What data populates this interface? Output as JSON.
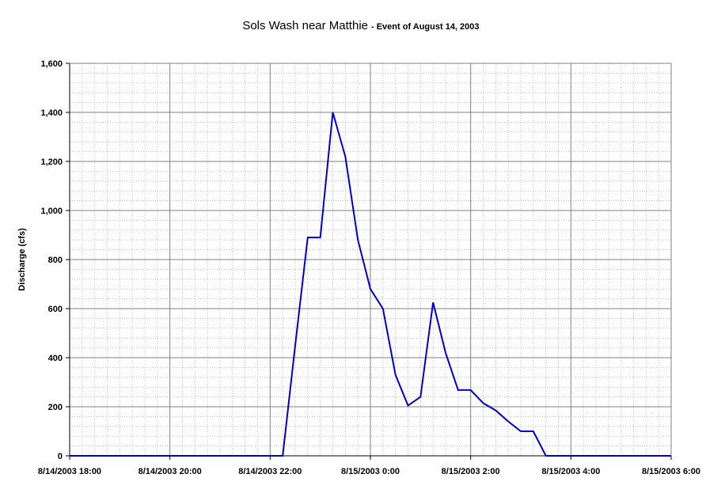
{
  "chart_data": {
    "type": "line",
    "title": "Sols Wash near Matthie",
    "subtitle": "- Event of August 14, 2003",
    "xlabel": "",
    "ylabel": "Discharge (cfs)",
    "x_ticks": [
      "8/14/2003 18:00",
      "8/14/2003 20:00",
      "8/14/2003 22:00",
      "8/15/2003 0:00",
      "8/15/2003 2:00",
      "8/15/2003 4:00",
      "8/15/2003 6:00"
    ],
    "y_ticks": [
      "0",
      "200",
      "400",
      "600",
      "800",
      "1,000",
      "1,200",
      "1,400",
      "1,600"
    ],
    "xlim": [
      "8/14/2003 18:00",
      "8/15/2003 6:00"
    ],
    "ylim": [
      0,
      1600
    ],
    "grid": true,
    "series": [
      {
        "color": "#0000cc",
        "points": [
          {
            "x": "8/14/2003 18:00",
            "y": 0
          },
          {
            "x": "8/14/2003 22:15",
            "y": 0
          },
          {
            "x": "8/14/2003 22:30",
            "y": 450
          },
          {
            "x": "8/14/2003 22:45",
            "y": 890
          },
          {
            "x": "8/14/2003 23:00",
            "y": 890
          },
          {
            "x": "8/14/2003 23:15",
            "y": 1400
          },
          {
            "x": "8/14/2003 23:30",
            "y": 1220
          },
          {
            "x": "8/14/2003 23:45",
            "y": 880
          },
          {
            "x": "8/15/2003 0:00",
            "y": 680
          },
          {
            "x": "8/15/2003 0:15",
            "y": 600
          },
          {
            "x": "8/15/2003 0:30",
            "y": 330
          },
          {
            "x": "8/15/2003 0:45",
            "y": 205
          },
          {
            "x": "8/15/2003 1:00",
            "y": 240
          },
          {
            "x": "8/15/2003 1:15",
            "y": 625
          },
          {
            "x": "8/15/2003 1:30",
            "y": 420
          },
          {
            "x": "8/15/2003 1:45",
            "y": 268
          },
          {
            "x": "8/15/2003 2:00",
            "y": 268
          },
          {
            "x": "8/15/2003 2:15",
            "y": 215
          },
          {
            "x": "8/15/2003 2:30",
            "y": 185
          },
          {
            "x": "8/15/2003 2:45",
            "y": 140
          },
          {
            "x": "8/15/2003 3:00",
            "y": 100
          },
          {
            "x": "8/15/2003 3:15",
            "y": 100
          },
          {
            "x": "8/15/2003 3:30",
            "y": 0
          },
          {
            "x": "8/15/2003 6:00",
            "y": 0
          }
        ]
      }
    ]
  }
}
